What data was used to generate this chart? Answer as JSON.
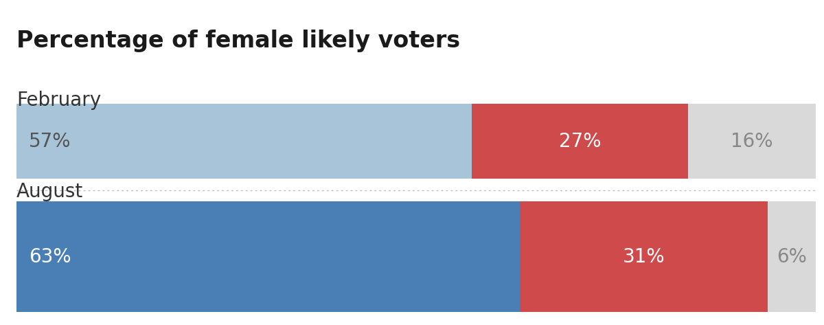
{
  "title": "Percentage of female likely voters",
  "rows": [
    {
      "label": "February",
      "segments": [
        57,
        27,
        16
      ],
      "colors": [
        "#a8c4d8",
        "#cf4a4a",
        "#d9d9d9"
      ],
      "text_colors": [
        "#555555",
        "#ffffff",
        "#888888"
      ]
    },
    {
      "label": "August",
      "segments": [
        63,
        31,
        6
      ],
      "colors": [
        "#4a7fb5",
        "#cf4a4a",
        "#d9d9d9"
      ],
      "text_colors": [
        "#ffffff",
        "#ffffff",
        "#888888"
      ]
    }
  ],
  "background_color": "#ffffff",
  "title_fontsize": 24,
  "label_fontsize": 20,
  "value_fontsize": 20,
  "dotted_line_color": "#bbbbbb",
  "title_color": "#1a1a1a",
  "label_color": "#333333"
}
